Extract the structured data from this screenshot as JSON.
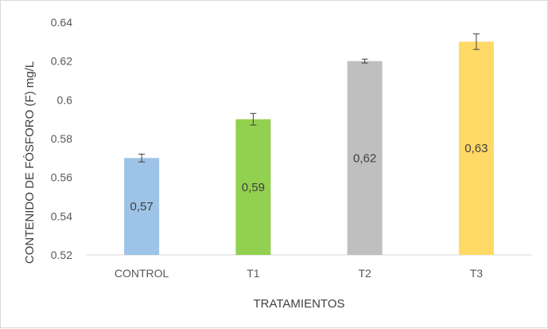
{
  "chart_data": {
    "type": "bar",
    "title": "",
    "xlabel": "TRATAMIENTOS",
    "ylabel": "CONTENIDO DE FÓSFORO (F)  mg/L",
    "categories": [
      "CONTROL",
      "T1",
      "T2",
      "T3"
    ],
    "values": [
      0.57,
      0.59,
      0.62,
      0.63
    ],
    "data_labels": [
      "0,57",
      "0,59",
      "0,62",
      "0,63"
    ],
    "errors": [
      0.002,
      0.003,
      0.001,
      0.004
    ],
    "colors": [
      "#9dc3e6",
      "#92d050",
      "#bfbfbf",
      "#ffd966"
    ],
    "ylim": [
      0.52,
      0.64
    ],
    "yticks": [
      0.52,
      0.54,
      0.56,
      0.58,
      0.6,
      0.62,
      0.64
    ],
    "ytick_labels": [
      "0.52",
      "0.54",
      "0.56",
      "0.58",
      "0.6",
      "0.62",
      "0.64"
    ],
    "grid": false,
    "legend": "none"
  }
}
